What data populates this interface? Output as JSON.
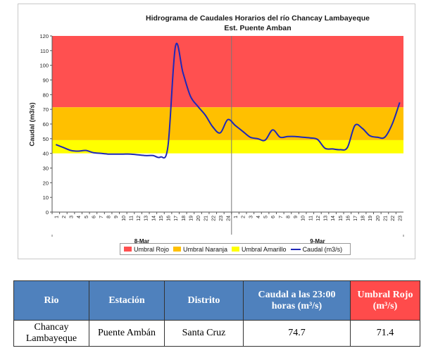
{
  "chart_data": {
    "type": "line",
    "title": "Hidrograma de Caudales Horarios del río Chancay Lambayeque",
    "subtitle": "Est. Puente Amban",
    "ylabel": "Caudal  (m3/s)",
    "ylim": [
      0,
      120
    ],
    "yticks": [
      "0",
      "10",
      "20",
      "30",
      "40",
      "50",
      "60",
      "70",
      "80",
      "90",
      "100",
      "110",
      "120"
    ],
    "xticks": [
      "1",
      "2",
      "3",
      "4",
      "5",
      "6",
      "7",
      "8",
      "9",
      "10",
      "11",
      "12",
      "13",
      "14",
      "15",
      "16",
      "17",
      "18",
      "19",
      "20",
      "21",
      "22",
      "23",
      "24",
      "1",
      "2",
      "3",
      "4",
      "5",
      "6",
      "7",
      "8",
      "9",
      "10",
      "11",
      "12",
      "13",
      "14",
      "15",
      "16",
      "17",
      "18",
      "19",
      "20",
      "21",
      "22",
      "23"
    ],
    "day_labels": [
      "8-Mar",
      "9-Mar"
    ],
    "bands": [
      {
        "name": "Umbral Rojo",
        "from": 71.4,
        "to": 120,
        "color": "#ff5050"
      },
      {
        "name": "Umbral Naranja",
        "from": 49,
        "to": 71.4,
        "color": "#ffc000"
      },
      {
        "name": "Umbral Amarillo",
        "from": 40,
        "to": 49,
        "color": "#ffff00"
      }
    ],
    "series": [
      {
        "name": "Caudal (m3/s)",
        "color": "#1f28b8",
        "values": [
          46,
          44,
          42,
          41.5,
          42,
          40.5,
          40,
          39.5,
          39.5,
          39.5,
          39.5,
          39,
          38.5,
          38.5,
          37.5,
          45,
          113,
          95,
          79,
          72,
          66,
          58,
          54,
          63,
          59,
          55,
          51,
          50,
          49,
          56,
          51,
          51.5,
          51.5,
          51,
          50.5,
          49.5,
          43.5,
          43,
          42.5,
          44,
          59,
          57,
          52,
          51,
          51,
          60,
          74.7
        ]
      }
    ]
  },
  "legend": {
    "rojo": "Umbral Rojo",
    "naranja": "Umbral Naranja",
    "amarillo": "Umbral Amarillo",
    "caudal": "Caudal (m3/s)"
  },
  "table": {
    "headers": {
      "rio": "Rio",
      "estacion": "Estación",
      "distrito": "Distrito",
      "caudal": "Caudal a las 23:00 horas (m³/s)",
      "umbral": "Umbral Rojo (m³/s)"
    },
    "row": {
      "rio": "Chancay Lambayeque",
      "estacion": "Puente Ambán",
      "distrito": "Santa Cruz",
      "caudal": "74.7",
      "umbral": "71.4"
    }
  }
}
